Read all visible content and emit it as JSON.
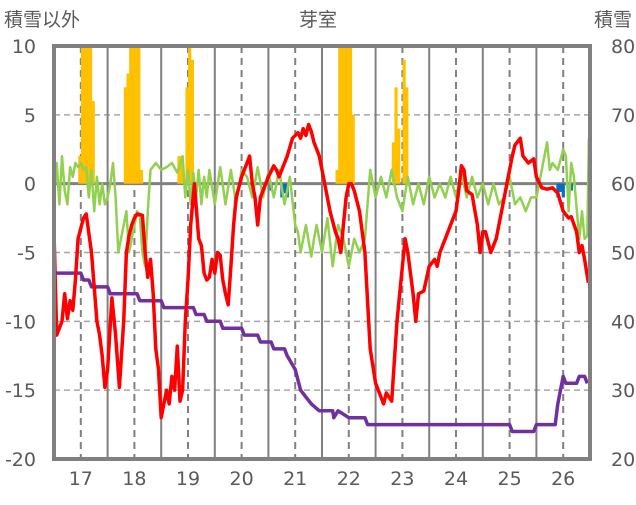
{
  "chart_data": {
    "type": "line",
    "title": "芽室",
    "ylabel_left": "積雪以外",
    "ylabel_right": "積雪",
    "ylim_left": [
      -20,
      10
    ],
    "ylim_right": [
      20,
      80
    ],
    "yticks_left": [
      "10",
      "5",
      "0",
      "-5",
      "-10",
      "-15",
      "-20"
    ],
    "yticks_right": [
      "80",
      "70",
      "60",
      "50",
      "40",
      "30",
      "20"
    ],
    "xlim": [
      16.5,
      26.5
    ],
    "xticks": [
      "17",
      "18",
      "19",
      "20",
      "21",
      "22",
      "23",
      "24",
      "25",
      "26"
    ],
    "grid": true,
    "colors": {
      "temp": "#ff0000",
      "green": "#92d050",
      "snow_depth": "#7030a0",
      "snowfall": "#ffc000",
      "blue": "#0070c0",
      "frame": "#808080"
    },
    "series": [
      {
        "name": "red",
        "axis": "left",
        "x": [
          16.5,
          16.55,
          16.65,
          16.7,
          16.75,
          16.8,
          16.85,
          16.9,
          16.95,
          17.05,
          17.1,
          17.2,
          17.3,
          17.35,
          17.4,
          17.45,
          17.5,
          17.58,
          17.65,
          17.72,
          17.8,
          17.85,
          17.9,
          17.95,
          18.0,
          18.05,
          18.15,
          18.2,
          18.25,
          18.3,
          18.35,
          18.4,
          18.45,
          18.5,
          18.55,
          18.6,
          18.65,
          18.7,
          18.75,
          18.8,
          18.85,
          18.9,
          18.95,
          19.0,
          19.05,
          19.12,
          19.15,
          19.2,
          19.25,
          19.3,
          19.35,
          19.4,
          19.45,
          19.5,
          19.55,
          19.6,
          19.65,
          19.7,
          19.75,
          19.8,
          19.85,
          19.9,
          20.0,
          20.1,
          20.15,
          20.2,
          20.25,
          20.3,
          20.35,
          20.4,
          20.5,
          20.6,
          20.65,
          20.7,
          20.75,
          20.85,
          20.95,
          21.05,
          21.1,
          21.15,
          21.2,
          21.25,
          21.3,
          21.35,
          21.45,
          21.55,
          21.65,
          21.75,
          21.8,
          21.85,
          21.9,
          21.95,
          22.0,
          22.05,
          22.1,
          22.2,
          22.3,
          22.4,
          22.5,
          22.55,
          22.6,
          22.65,
          22.7,
          22.75,
          22.8,
          22.9,
          23.0,
          23.05,
          23.1,
          23.2,
          23.25,
          23.3,
          23.4,
          23.5,
          23.6,
          23.65,
          23.7,
          23.8,
          23.9,
          24.0,
          24.05,
          24.1,
          24.15,
          24.2,
          24.3,
          24.4,
          24.45,
          24.5,
          24.55,
          24.65,
          24.75,
          24.85,
          24.95,
          25.05,
          25.1,
          25.2,
          25.25,
          25.35,
          25.45,
          25.5,
          25.6,
          25.7,
          25.8,
          25.9,
          26.0,
          26.1,
          26.15,
          26.25,
          26.3,
          26.35,
          26.4,
          26.47
        ],
        "y": [
          -3.5,
          -11,
          -10,
          -8,
          -9.8,
          -8.5,
          -9.2,
          -7,
          -4,
          -2.5,
          -2.2,
          -5,
          -10,
          -11,
          -12.5,
          -14.8,
          -13.5,
          -8.3,
          -11,
          -14.8,
          -10,
          -5,
          -3.8,
          -3,
          -2.5,
          -2.2,
          -2.3,
          -5,
          -6.8,
          -5.5,
          -8,
          -12,
          -13.5,
          -17,
          -16,
          -15,
          -16,
          -14,
          -15,
          -11.8,
          -15.8,
          -15,
          -10,
          -7,
          -3,
          0,
          -1.5,
          -4,
          -4.5,
          -6.5,
          -7,
          -6.8,
          -5.5,
          -6.5,
          -5,
          -5.2,
          -7,
          -8,
          -8.8,
          -6,
          -3,
          -1,
          0.5,
          1.5,
          2,
          0,
          -1,
          -3,
          -1,
          -0.5,
          0.5,
          1.3,
          1,
          0.5,
          1,
          2,
          3.3,
          3.7,
          3.3,
          4,
          3.5,
          4.3,
          3.8,
          3,
          2,
          0,
          -2,
          -3.5,
          -4,
          -5,
          -3,
          -1,
          0,
          0,
          -0.5,
          -2,
          -5,
          -12,
          -14.5,
          -15,
          -15.5,
          -16,
          -15.2,
          -15.5,
          -15.8,
          -10,
          -6,
          -4,
          -5,
          -8,
          -10,
          -8,
          -7.8,
          -6,
          -5.5,
          -6,
          -5,
          -4,
          -3,
          -2,
          -0.5,
          1.3,
          1,
          -0.5,
          -0.8,
          -3,
          -5,
          -3.5,
          -3.5,
          -5,
          -4,
          -2,
          0,
          2,
          2.8,
          3.3,
          2,
          1.5,
          1.8,
          0.5,
          -0.3,
          -0.4,
          -0.3,
          -0.7,
          -2,
          -2.5,
          -2.4,
          -3.5,
          -5,
          -4.5,
          -5.5,
          -7.2
        ]
      },
      {
        "name": "green",
        "axis": "left",
        "x": [
          16.5,
          16.55,
          16.6,
          16.65,
          16.7,
          16.75,
          16.8,
          16.85,
          16.9,
          16.95,
          17.0,
          17.05,
          17.1,
          17.15,
          17.2,
          17.25,
          17.3,
          17.35,
          17.4,
          17.45,
          17.5,
          17.55,
          17.6,
          17.65,
          17.7,
          17.75,
          17.8,
          17.85,
          17.9,
          17.95,
          18.0,
          18.05,
          18.1,
          18.15,
          18.2,
          18.25,
          18.3,
          18.4,
          18.5,
          18.6,
          18.7,
          18.8,
          18.9,
          18.95,
          19.0,
          19.05,
          19.1,
          19.15,
          19.2,
          19.25,
          19.3,
          19.35,
          19.4,
          19.5,
          19.6,
          19.7,
          19.8,
          19.9,
          20.0,
          20.1,
          20.2,
          20.3,
          20.4,
          20.5,
          20.6,
          20.7,
          20.8,
          20.9,
          21.0,
          21.05,
          21.1,
          21.2,
          21.3,
          21.35,
          21.4,
          21.5,
          21.6,
          21.7,
          21.8,
          21.9,
          22.0,
          22.1,
          22.2,
          22.3,
          22.4,
          22.5,
          22.6,
          22.7,
          22.8,
          22.9,
          23.0,
          23.1,
          23.2,
          23.3,
          23.4,
          23.5,
          23.6,
          23.7,
          23.8,
          23.9,
          24.0,
          24.1,
          24.2,
          24.3,
          24.4,
          24.5,
          24.6,
          24.7,
          24.8,
          24.9,
          25.0,
          25.1,
          25.2,
          25.3,
          25.4,
          25.5,
          25.55,
          25.6,
          25.65,
          25.7,
          25.75,
          25.8,
          25.9,
          26.0,
          26.05,
          26.1,
          26.15,
          26.2,
          26.3,
          26.35,
          26.4,
          26.45,
          26.48
        ],
        "y": [
          -1,
          1.5,
          -1.5,
          2,
          -0.5,
          -1.5,
          1.2,
          0.5,
          1.5,
          1.2,
          1.5,
          1,
          1.2,
          -1,
          1,
          -2,
          0.5,
          -1.5,
          0,
          -1.5,
          -1,
          0,
          1.5,
          -1,
          -5,
          -4,
          -3,
          -2,
          -5,
          -4,
          -3,
          -2,
          -2.3,
          -5,
          -6,
          -2,
          1,
          1.5,
          1,
          1.2,
          1.5,
          0.8,
          2,
          -1,
          1,
          -1.5,
          0.8,
          -1,
          1,
          -1.5,
          0.5,
          -1,
          1,
          -1.5,
          1.2,
          -1.5,
          1,
          -1.5,
          1,
          0.5,
          -1,
          1.2,
          -1,
          0.8,
          -1,
          1,
          -1.5,
          0.5,
          -3,
          -3.5,
          -5,
          -3,
          -5.3,
          -4,
          -3,
          -5,
          -2.5,
          -6,
          -3,
          -4,
          -6,
          -4,
          -5,
          -4,
          1,
          -1,
          0.5,
          -1,
          1,
          -1,
          -2,
          0.5,
          -1.5,
          0,
          -1.5,
          0.5,
          -1,
          0,
          -1,
          0.5,
          -1,
          0.8,
          -1,
          0.5,
          -1,
          0,
          -1.5,
          0,
          -1.5,
          -1,
          0.5,
          -1.5,
          -1,
          -2,
          -1,
          -1,
          0,
          1,
          2,
          3,
          1,
          1.5,
          1,
          2.5,
          2,
          -2,
          1.5,
          0.5,
          -4,
          -2,
          -4,
          -3.8,
          3.3
        ]
      },
      {
        "name": "snow_depth",
        "axis": "left",
        "x": [
          16.5,
          17.0,
          17.05,
          17.15,
          17.2,
          17.5,
          17.55,
          18.05,
          18.1,
          18.5,
          18.55,
          19.1,
          19.15,
          19.3,
          19.35,
          19.6,
          19.65,
          20.0,
          20.05,
          20.3,
          20.35,
          20.55,
          20.6,
          20.8,
          20.85,
          21.0,
          21.1,
          21.2,
          21.3,
          21.45,
          21.7,
          21.72,
          21.8,
          22.0,
          22.3,
          22.35,
          25.0,
          25.05,
          25.45,
          25.5,
          25.85,
          25.9,
          26.0,
          26.05,
          26.25,
          26.3,
          26.4,
          26.45
        ],
        "y": [
          -6.5,
          -6.5,
          -7,
          -7,
          -7.5,
          -7.5,
          -8,
          -8,
          -8.5,
          -8.5,
          -9,
          -9,
          -9.5,
          -9.5,
          -10,
          -10,
          -10.5,
          -10.5,
          -11,
          -11,
          -11.5,
          -11.5,
          -12,
          -12,
          -12.5,
          -13.5,
          -15,
          -15.5,
          -16,
          -16.5,
          -16.5,
          -17,
          -16.5,
          -17,
          -17,
          -17.5,
          -17.5,
          -18,
          -18,
          -17.5,
          -17.5,
          -16,
          -14,
          -14.5,
          -14.5,
          -14,
          -14,
          -14.5
        ]
      },
      {
        "name": "snowfall",
        "axis": "left",
        "type": "bar",
        "x": [
          16.98,
          17.03,
          17.08,
          17.13,
          17.18,
          17.23,
          17.83,
          17.88,
          17.93,
          17.98,
          18.03,
          18.08,
          18.13,
          18.83,
          18.88,
          18.98,
          19.03,
          19.08,
          21.78,
          21.83,
          21.88,
          21.93,
          21.98,
          22.03,
          22.08,
          22.83,
          22.88,
          22.93,
          23.03,
          23.08
        ],
        "y": [
          2,
          10,
          10,
          10,
          10,
          6,
          7,
          8,
          10,
          10,
          10,
          10,
          1,
          2,
          2,
          7,
          10,
          9,
          1,
          10,
          10,
          10,
          10,
          10,
          5,
          3,
          7,
          4,
          9,
          7
        ]
      },
      {
        "name": "blue",
        "axis": "left",
        "type": "bar",
        "x": [
          20.55,
          20.75,
          20.8,
          20.85,
          25.9,
          25.95,
          26.0,
          26.15
        ],
        "y": [
          -0.5,
          -1,
          -0.7,
          -1,
          -1,
          -0.6,
          -1,
          -0.5
        ]
      }
    ]
  }
}
